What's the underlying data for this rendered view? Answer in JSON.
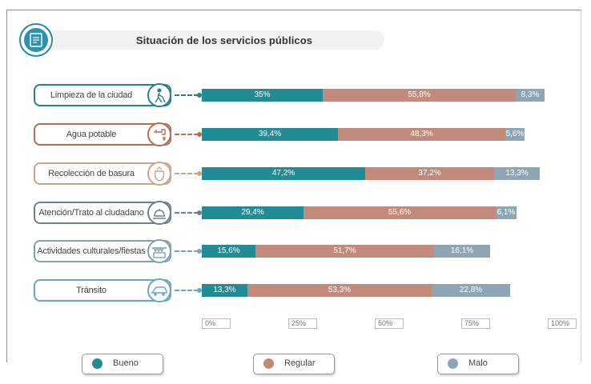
{
  "title": "Situación de los servicios públicos",
  "colors": {
    "bueno": "#238b94",
    "regular": "#c18a7a",
    "malo": "#8da5b4"
  },
  "legend": [
    {
      "label": "Bueno",
      "color": "#238b94"
    },
    {
      "label": "Regular",
      "color": "#c18a7a"
    },
    {
      "label": "Malo",
      "color": "#8da5b4"
    }
  ],
  "categories": [
    {
      "label": "Limpieza de la ciudad",
      "icon": "street-sweeper-icon",
      "color": "#2a7f8c"
    },
    {
      "label": "Agua potable",
      "icon": "water-tap-icon",
      "color": "#b36f50"
    },
    {
      "label": "Recolección de basura",
      "icon": "trash-bag-icon",
      "color": "#c8a58c"
    },
    {
      "label": "Atención/Trato al ciudadano",
      "icon": "service-bell-icon",
      "color": "#6f7f8c"
    },
    {
      "label": "Actividades culturales/fiestas",
      "icon": "festival-icon",
      "color": "#7fa3b1"
    },
    {
      "label": "Tránsito",
      "icon": "car-icon",
      "color": "#6aa8bd"
    }
  ],
  "chart_data": {
    "type": "bar",
    "orientation": "horizontal",
    "stacked": true,
    "title": "Situación de los servicios públicos",
    "categories": [
      "Limpieza de la ciudad",
      "Agua potable",
      "Recolección de basura",
      "Atención/Trato al ciudadano",
      "Actividades culturales/fiestas",
      "Tránsito"
    ],
    "series": [
      {
        "name": "Bueno",
        "values": [
          35,
          39.4,
          47.2,
          29.4,
          15.6,
          13.3
        ],
        "labels": [
          "35%",
          "39,4%",
          "47,2%",
          "29,4%",
          "15,6%",
          "13,3%"
        ]
      },
      {
        "name": "Regular",
        "values": [
          55.8,
          48.3,
          37.2,
          55.6,
          51.7,
          53.3
        ],
        "labels": [
          "55,8%",
          "48,3%",
          "37,2%",
          "55,6%",
          "51,7%",
          "53,3%"
        ]
      },
      {
        "name": "Malo",
        "values": [
          8.3,
          5.6,
          13.3,
          6.1,
          16.1,
          22.8
        ],
        "labels": [
          "8,3%",
          "5,6%",
          "13,3%",
          "6,1%",
          "16,1%",
          "22,8%"
        ]
      }
    ],
    "xticks": [
      "0%",
      "25%",
      "50%",
      "75%",
      "100%"
    ],
    "xlim": [
      0,
      100
    ],
    "legend_position": "bottom"
  }
}
